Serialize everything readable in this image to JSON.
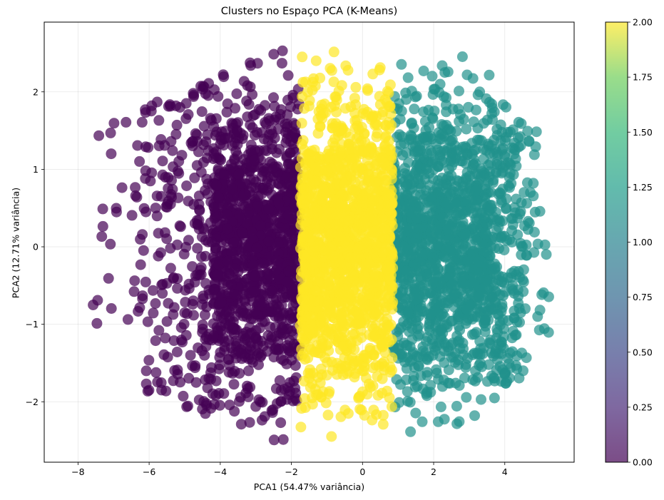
{
  "chart_data": {
    "type": "scatter",
    "title": "Clusters no Espaço PCA (K-Means)",
    "xlabel": "PCA1 (54.47% variância)",
    "ylabel": "PCA2 (12.71% variância)",
    "xlim": [
      -8.95,
      5.95
    ],
    "ylim": [
      -2.78,
      2.9
    ],
    "xticks": [
      -8,
      -6,
      -4,
      -2,
      0,
      2,
      4
    ],
    "xtick_labels": [
      "−8",
      "−6",
      "−4",
      "−2",
      "0",
      "2",
      "4"
    ],
    "yticks": [
      -2,
      -1,
      0,
      1,
      2
    ],
    "ytick_labels": [
      "−2",
      "−1",
      "0",
      "1",
      "2"
    ],
    "grid": true,
    "marker_alpha": 0.7,
    "colormap": "viridis",
    "series": [
      {
        "name": "Cluster 0",
        "label_value": 0,
        "color": "#440154",
        "x_range": [
          -8.35,
          -1.75
        ],
        "y_range": [
          -2.5,
          2.55
        ],
        "dense_x_range": [
          -4.2,
          -1.75
        ]
      },
      {
        "name": "Cluster 1",
        "label_value": 1,
        "color": "#21918c",
        "x_range": [
          0.85,
          5.25
        ],
        "y_range": [
          -2.45,
          2.65
        ],
        "dense_x_range": [
          0.85,
          3.6
        ]
      },
      {
        "name": "Cluster 2",
        "label_value": 2,
        "color": "#fde725",
        "x_range": [
          -1.75,
          0.85
        ],
        "y_range": [
          -2.45,
          2.6
        ],
        "dense_x_range": [
          -1.75,
          0.85
        ]
      }
    ],
    "colorbar": {
      "range": [
        0.0,
        2.0
      ],
      "ticks": [
        0.0,
        0.25,
        0.5,
        0.75,
        1.0,
        1.25,
        1.5,
        1.75,
        2.0
      ],
      "tick_labels": [
        "0.00",
        "0.25",
        "0.50",
        "0.75",
        "1.00",
        "1.25",
        "1.50",
        "1.75",
        "2.00"
      ]
    }
  }
}
